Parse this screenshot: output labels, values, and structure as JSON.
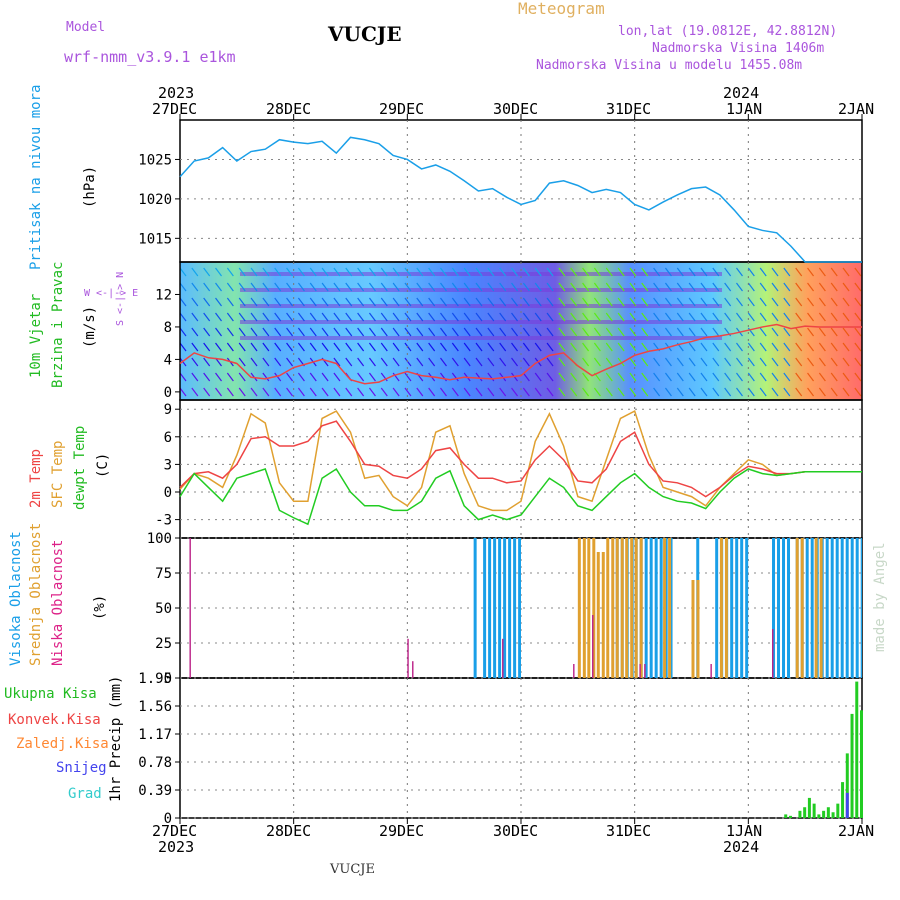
{
  "header": {
    "model_label": "Model",
    "model_name": "wrf-nmm_v3.9.1 e1km",
    "location": "VUCJE",
    "meteogram": "Meteogram",
    "lonlat": "lon,lat (19.0812E, 42.8812N)",
    "altitude": "Nadmorska Visina 1406m",
    "model_altitude": "Nadmorska Visina u modelu 1455.08m",
    "watermark": "made by Angel",
    "footer_location": "VUCJE"
  },
  "colors": {
    "pressure": "#1a9fe8",
    "temp2m": "#ee4444",
    "sfc": "#e0a030",
    "dewpt": "#22cc22",
    "high_cloud": "#1a9fe8",
    "mid_cloud": "#e0a030",
    "low_cloud": "#bb2288",
    "total_precip": "#22cc22",
    "conv_precip": "#ee4444",
    "frozen_precip": "#ff8833",
    "snow": "#4444ee",
    "hail": "#33cccc",
    "purple": "#aa55dd"
  },
  "time_axis": {
    "top_years": [
      "2023",
      "2024"
    ],
    "days": [
      "27DEC",
      "28DEC",
      "29DEC",
      "30DEC",
      "31DEC",
      "1JAN",
      "2JAN"
    ],
    "bottom_years": [
      "2023",
      "2024"
    ]
  },
  "panels": {
    "pressure": {
      "label": "Pritisak na nivou mora",
      "unit": "(hPa)",
      "ticks": [
        "1015",
        "1020",
        "1025"
      ]
    },
    "wind": {
      "label1": "10m Vjetar",
      "label2": "Brzina i Pravac",
      "unit": "(m/s)",
      "ticks": [
        "0",
        "4",
        "8",
        "12"
      ],
      "compass": "W  <-|->  E",
      "compass_v": "S <-|-> N"
    },
    "temp": {
      "label1": "2m Temp",
      "label2": "SFC Temp",
      "label3": "dewpt Temp",
      "unit": "(C)",
      "ticks": [
        "-3",
        "0",
        "3",
        "6",
        "9"
      ]
    },
    "cloud": {
      "label1": "Visoka Oblacnost",
      "label2": "Srednja Oblacnost",
      "label3": "Niska Oblacnost",
      "unit": "(%)",
      "ticks": [
        "0",
        "25",
        "50",
        "75",
        "100"
      ]
    },
    "precip": {
      "legend": [
        "Ukupna Kisa",
        "Konvek.Kisa",
        "Zaledj.Kisa",
        "Snijeg",
        "Grad"
      ],
      "unit": "1hr Precip (mm)",
      "ticks": [
        "0",
        "0.39",
        "0.78",
        "1.17",
        "1.56",
        "1.95"
      ]
    }
  },
  "chart_data": [
    {
      "type": "line",
      "name": "pressure",
      "ylabel": "(hPa)",
      "ylim": [
        1012,
        1030
      ],
      "x_hours": [
        0,
        3,
        6,
        9,
        12,
        15,
        18,
        21,
        24,
        27,
        30,
        33,
        36,
        39,
        42,
        45,
        48,
        51,
        54,
        57,
        60,
        63,
        66,
        69,
        72,
        75,
        78,
        81,
        84,
        87,
        90,
        93,
        96,
        99,
        102,
        105,
        108,
        111,
        114,
        117,
        120,
        123,
        126,
        129,
        132,
        135,
        138,
        141,
        144
      ],
      "values": [
        1022.8,
        1024.8,
        1025.2,
        1026.5,
        1024.8,
        1026.0,
        1026.3,
        1027.5,
        1027.2,
        1027.0,
        1027.3,
        1025.8,
        1027.8,
        1027.5,
        1027.0,
        1025.5,
        1025.0,
        1023.8,
        1024.3,
        1023.5,
        1022.3,
        1021.0,
        1021.3,
        1020.2,
        1019.3,
        1019.8,
        1022.0,
        1022.3,
        1021.7,
        1020.8,
        1021.2,
        1020.8,
        1019.3,
        1018.6,
        1019.6,
        1020.5,
        1021.3,
        1021.5,
        1020.5,
        1018.6,
        1016.5,
        1016.0,
        1015.7,
        1014.0,
        1012.0,
        1012.0,
        1012.0,
        1012.0,
        1012.0
      ]
    },
    {
      "type": "line",
      "name": "wind",
      "ylabel": "(m/s)",
      "ylim": [
        -1,
        16
      ],
      "x_hours": [
        0,
        3,
        6,
        9,
        12,
        15,
        18,
        21,
        24,
        27,
        30,
        33,
        36,
        39,
        42,
        45,
        48,
        51,
        54,
        57,
        60,
        63,
        66,
        69,
        72,
        75,
        78,
        81,
        84,
        87,
        90,
        93,
        96,
        99,
        102,
        105,
        108,
        111,
        114,
        117,
        120,
        123,
        126,
        129,
        132,
        135,
        138,
        141,
        144
      ],
      "series": [
        {
          "values": [
            3.5,
            4.8,
            4.2,
            4.0,
            3.5,
            1.8,
            1.6,
            2.0,
            3.0,
            3.5,
            4.0,
            3.5,
            1.5,
            1.0,
            1.2,
            2.0,
            2.5,
            2.0,
            1.8,
            1.5,
            1.8,
            1.7,
            1.6,
            1.8,
            2.0,
            3.5,
            4.5,
            4.8,
            3.2,
            2.0,
            2.8,
            3.5,
            4.5,
            5.0,
            5.3,
            5.8,
            6.2,
            6.7,
            6.9,
            7.2,
            7.6,
            8.0,
            8.3,
            7.8,
            8.1,
            8.0,
            8.0,
            8.0,
            8.0
          ]
        }
      ]
    },
    {
      "type": "line",
      "name": "temperature",
      "ylabel": "(C)",
      "ylim": [
        -5,
        10
      ],
      "x_hours": [
        0,
        3,
        6,
        9,
        12,
        15,
        18,
        21,
        24,
        27,
        30,
        33,
        36,
        39,
        42,
        45,
        48,
        51,
        54,
        57,
        60,
        63,
        66,
        69,
        72,
        75,
        78,
        81,
        84,
        87,
        90,
        93,
        96,
        99,
        102,
        105,
        108,
        111,
        114,
        117,
        120,
        123,
        126,
        129,
        132,
        135,
        138,
        141,
        144
      ],
      "series": [
        {
          "name": "2m Temp",
          "values": [
            0.5,
            2.0,
            2.2,
            1.5,
            3.0,
            5.8,
            6.0,
            5.0,
            5.0,
            5.5,
            7.2,
            7.7,
            5.5,
            3.0,
            2.8,
            1.8,
            1.5,
            2.5,
            4.5,
            4.8,
            3.0,
            1.5,
            1.5,
            1.0,
            1.2,
            3.5,
            5.0,
            3.5,
            1.2,
            1.0,
            2.5,
            5.5,
            6.5,
            3.0,
            1.2,
            1.0,
            0.5,
            -0.5,
            0.5,
            1.8,
            2.8,
            2.5,
            2.0,
            2.0,
            2.2,
            2.2,
            2.2,
            2.2,
            2.2
          ]
        },
        {
          "name": "SFC Temp",
          "values": [
            0.3,
            2.0,
            1.5,
            0.5,
            4.0,
            8.5,
            7.5,
            1.0,
            -1.0,
            -1.0,
            8.0,
            8.8,
            6.5,
            1.5,
            1.8,
            -0.5,
            -1.5,
            0.5,
            6.5,
            7.2,
            2.0,
            -1.5,
            -2.0,
            -2.0,
            -1.0,
            5.5,
            8.5,
            5.0,
            -0.5,
            -1.0,
            3.5,
            8.0,
            8.8,
            4.0,
            0.5,
            0.0,
            -0.5,
            -1.5,
            0.5,
            2.0,
            3.5,
            3.0,
            1.8,
            2.0,
            2.2,
            2.2,
            2.2,
            2.2,
            2.2
          ]
        },
        {
          "name": "dewpt Temp",
          "values": [
            -0.5,
            2.0,
            0.5,
            -1.0,
            1.5,
            2.0,
            2.5,
            -2.0,
            -2.8,
            -3.5,
            1.5,
            2.5,
            0.0,
            -1.5,
            -1.5,
            -2.0,
            -2.0,
            -1.0,
            1.5,
            2.3,
            -1.5,
            -3.0,
            -2.5,
            -3.0,
            -2.5,
            -0.5,
            1.5,
            0.5,
            -1.5,
            -2.0,
            -0.5,
            1.0,
            2.0,
            0.5,
            -0.5,
            -1.0,
            -1.2,
            -1.8,
            0.0,
            1.5,
            2.5,
            2.0,
            1.8,
            2.0,
            2.2,
            2.2,
            2.2,
            2.2,
            2.2
          ]
        }
      ]
    },
    {
      "type": "bar",
      "name": "cloud_cover",
      "ylabel": "(%)",
      "ylim": [
        0,
        100
      ],
      "series": [
        {
          "name": "Visoka Oblacnost",
          "bars": [
            [
              62,
              63,
              100
            ],
            [
              64,
              72,
              100
            ],
            [
              92,
              96,
              100
            ],
            [
              96,
              104,
              100
            ],
            [
              109,
              110,
              100
            ],
            [
              113,
              120,
              100
            ],
            [
              125,
              129,
              100
            ],
            [
              130,
              144,
              100
            ]
          ]
        },
        {
          "name": "Srednja Oblacnost",
          "bars": [
            [
              84,
              86,
              100
            ],
            [
              86,
              88,
              100
            ],
            [
              88,
              90,
              90
            ],
            [
              90,
              92,
              100
            ],
            [
              92,
              94,
              100
            ],
            [
              94,
              96,
              100
            ],
            [
              96,
              98,
              100
            ],
            [
              102,
              104,
              100
            ],
            [
              108,
              110,
              70
            ],
            [
              114,
              116,
              100
            ],
            [
              130,
              132,
              100
            ],
            [
              134,
              136,
              100
            ]
          ]
        },
        {
          "name": "Niska Oblacnost",
          "bars": [
            [
              2,
              2.3,
              100
            ],
            [
              48,
              48.3,
              28
            ],
            [
              49,
              49.3,
              12
            ],
            [
              68,
              68.3,
              28
            ],
            [
              83,
              83.3,
              10
            ],
            [
              87,
              87.3,
              45
            ],
            [
              97,
              97.3,
              10
            ],
            [
              98,
              98.3,
              10
            ],
            [
              112,
              112.3,
              10
            ],
            [
              125,
              125.3,
              35
            ]
          ]
        }
      ]
    },
    {
      "type": "bar",
      "name": "precipitation",
      "ylabel": "1hr Precip (mm)",
      "ylim": [
        0,
        1.95
      ],
      "x_hours": [
        128,
        129,
        131,
        132,
        133,
        134,
        135,
        136,
        137,
        138,
        139,
        140,
        141,
        142,
        143,
        144
      ],
      "series": [
        {
          "name": "Ukupna Kisa",
          "values": [
            0.05,
            0.03,
            0.1,
            0.15,
            0.28,
            0.2,
            0.05,
            0.1,
            0.15,
            0.08,
            0.2,
            0.5,
            0.9,
            1.45,
            1.9,
            1.5
          ]
        },
        {
          "name": "Snijeg",
          "values": [
            0,
            0,
            0,
            0,
            0,
            0,
            0,
            0,
            0,
            0,
            0,
            0,
            0.35,
            0,
            0,
            0
          ]
        }
      ]
    }
  ]
}
